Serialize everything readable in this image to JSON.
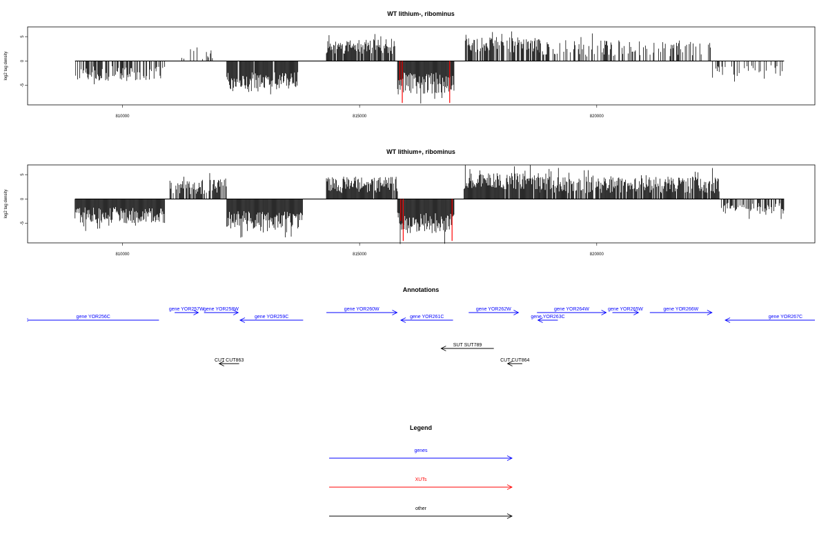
{
  "chart_data": [
    {
      "type": "bar",
      "title": "WT lithium-, ribominus",
      "xlabel": "",
      "ylabel": "log2 tag density",
      "xlim": [
        808000,
        824600
      ],
      "ylim": [
        -9,
        7
      ],
      "xticks": [
        810000,
        815000,
        820000
      ],
      "xtick_labels": [
        "810000",
        "815000",
        "820000"
      ],
      "yticks": [
        5,
        0,
        -5
      ],
      "ytick_labels": [
        "5",
        "0",
        "-5"
      ],
      "grid": false,
      "baseline": 0,
      "regions": [
        {
          "start": 809000,
          "end": 810900,
          "sign": -1,
          "mean": 2.6,
          "spread": 1.1,
          "density": 0.55
        },
        {
          "start": 811000,
          "end": 812000,
          "sign": 1,
          "mean": 1.6,
          "spread": 1.0,
          "density": 0.15
        },
        {
          "start": 812200,
          "end": 813700,
          "sign": -1,
          "mean": 4.1,
          "spread": 1.3,
          "density": 0.95
        },
        {
          "start": 814300,
          "end": 815750,
          "sign": 1,
          "mean": 3.0,
          "spread": 1.1,
          "density": 0.85
        },
        {
          "start": 815800,
          "end": 817000,
          "sign": -1,
          "mean": 4.6,
          "spread": 1.6,
          "density": 1.0
        },
        {
          "start": 817200,
          "end": 818800,
          "sign": 1,
          "mean": 3.3,
          "spread": 1.1,
          "density": 0.75
        },
        {
          "start": 818800,
          "end": 822400,
          "sign": 1,
          "mean": 2.6,
          "spread": 1.2,
          "density": 0.38
        },
        {
          "start": 822400,
          "end": 823950,
          "sign": -1,
          "mean": 2.0,
          "spread": 0.8,
          "density": 0.35
        }
      ],
      "red_bars": [
        {
          "x": 815900,
          "value": -8.6
        },
        {
          "x": 816900,
          "value": -8.6
        },
        {
          "x": 815850,
          "value": -4.0
        }
      ]
    },
    {
      "type": "bar",
      "title": "WT lithium+, ribominus",
      "xlabel": "",
      "ylabel": "log2 tag density",
      "xlim": [
        808000,
        824600
      ],
      "ylim": [
        -9,
        7
      ],
      "xticks": [
        810000,
        815000,
        820000
      ],
      "xtick_labels": [
        "810000",
        "815000",
        "820000"
      ],
      "yticks": [
        5,
        0,
        -5
      ],
      "ytick_labels": [
        "5",
        "0",
        "-5"
      ],
      "grid": false,
      "baseline": 0,
      "regions": [
        {
          "start": 809000,
          "end": 810900,
          "sign": -1,
          "mean": 3.3,
          "spread": 1.2,
          "density": 1.0
        },
        {
          "start": 811000,
          "end": 812200,
          "sign": 1,
          "mean": 2.5,
          "spread": 1.1,
          "density": 0.75
        },
        {
          "start": 812200,
          "end": 813800,
          "sign": -1,
          "mean": 4.3,
          "spread": 1.3,
          "density": 1.0
        },
        {
          "start": 814300,
          "end": 815800,
          "sign": 1,
          "mean": 2.9,
          "spread": 1.2,
          "density": 0.95
        },
        {
          "start": 815800,
          "end": 817000,
          "sign": -1,
          "mean": 4.9,
          "spread": 1.5,
          "density": 1.0
        },
        {
          "start": 817200,
          "end": 818800,
          "sign": 1,
          "mean": 3.7,
          "spread": 1.2,
          "density": 0.95
        },
        {
          "start": 818800,
          "end": 822600,
          "sign": 1,
          "mean": 2.9,
          "spread": 1.2,
          "density": 0.85
        },
        {
          "start": 822600,
          "end": 823950,
          "sign": -1,
          "mean": 1.9,
          "spread": 0.8,
          "density": 0.65
        }
      ],
      "red_bars": [
        {
          "x": 815920,
          "value": -8.6
        },
        {
          "x": 816950,
          "value": -8.6
        },
        {
          "x": 815870,
          "value": -4.5
        }
      ]
    }
  ],
  "annotations": {
    "title": "Annotations",
    "features": [
      {
        "label": "gene YOR256C",
        "start": 808000,
        "end": 810770,
        "strand": "-",
        "color": "#0000ff",
        "row": 1,
        "truncated": true
      },
      {
        "label": "gene YOR257W",
        "start": 811100,
        "end": 811600,
        "strand": "+",
        "color": "#0000ff",
        "row": 0
      },
      {
        "label": "gene YOR258W",
        "start": 811720,
        "end": 812440,
        "strand": "+",
        "color": "#0000ff",
        "row": 0
      },
      {
        "label": "gene YOR259C",
        "start": 812480,
        "end": 813810,
        "strand": "-",
        "color": "#0000ff",
        "row": 1
      },
      {
        "label": "gene YOR260W",
        "start": 814300,
        "end": 815790,
        "strand": "+",
        "color": "#0000ff",
        "row": 0
      },
      {
        "label": "gene YOR261C",
        "start": 815870,
        "end": 816970,
        "strand": "-",
        "color": "#0000ff",
        "row": 1
      },
      {
        "label": "gene YOR262W",
        "start": 817300,
        "end": 818350,
        "strand": "+",
        "color": "#0000ff",
        "row": 0
      },
      {
        "label": "gene YOR263C",
        "start": 818760,
        "end": 819180,
        "strand": "-",
        "color": "#0000ff",
        "row": 1
      },
      {
        "label": "gene YOR264W",
        "start": 818740,
        "end": 820200,
        "strand": "+",
        "color": "#0000ff",
        "row": 0
      },
      {
        "label": "gene YOR265W",
        "start": 820330,
        "end": 820880,
        "strand": "+",
        "color": "#0000ff",
        "row": 0
      },
      {
        "label": "gene YOR266W",
        "start": 821120,
        "end": 822430,
        "strand": "+",
        "color": "#0000ff",
        "row": 0
      },
      {
        "label": "gene YOR267C",
        "start": 822710,
        "end": 824600,
        "strand": "-",
        "color": "#0000ff",
        "row": 1,
        "label_x": 823980
      },
      {
        "label": "SUT SUT789",
        "start": 816720,
        "end": 817830,
        "strand": "-",
        "color": "#000000",
        "row": 2
      },
      {
        "label": "CUT CUT863",
        "start": 812040,
        "end": 812460,
        "strand": "-",
        "color": "#000000",
        "row": 3
      },
      {
        "label": "CUT CUT864",
        "start": 818120,
        "end": 818430,
        "strand": "-",
        "color": "#000000",
        "row": 3
      }
    ]
  },
  "legend": {
    "title": "Legend",
    "items": [
      {
        "label": "genes",
        "color": "#0000ff"
      },
      {
        "label": "XUTs",
        "color": "#ff0000"
      },
      {
        "label": "other",
        "color": "#000000"
      }
    ]
  }
}
